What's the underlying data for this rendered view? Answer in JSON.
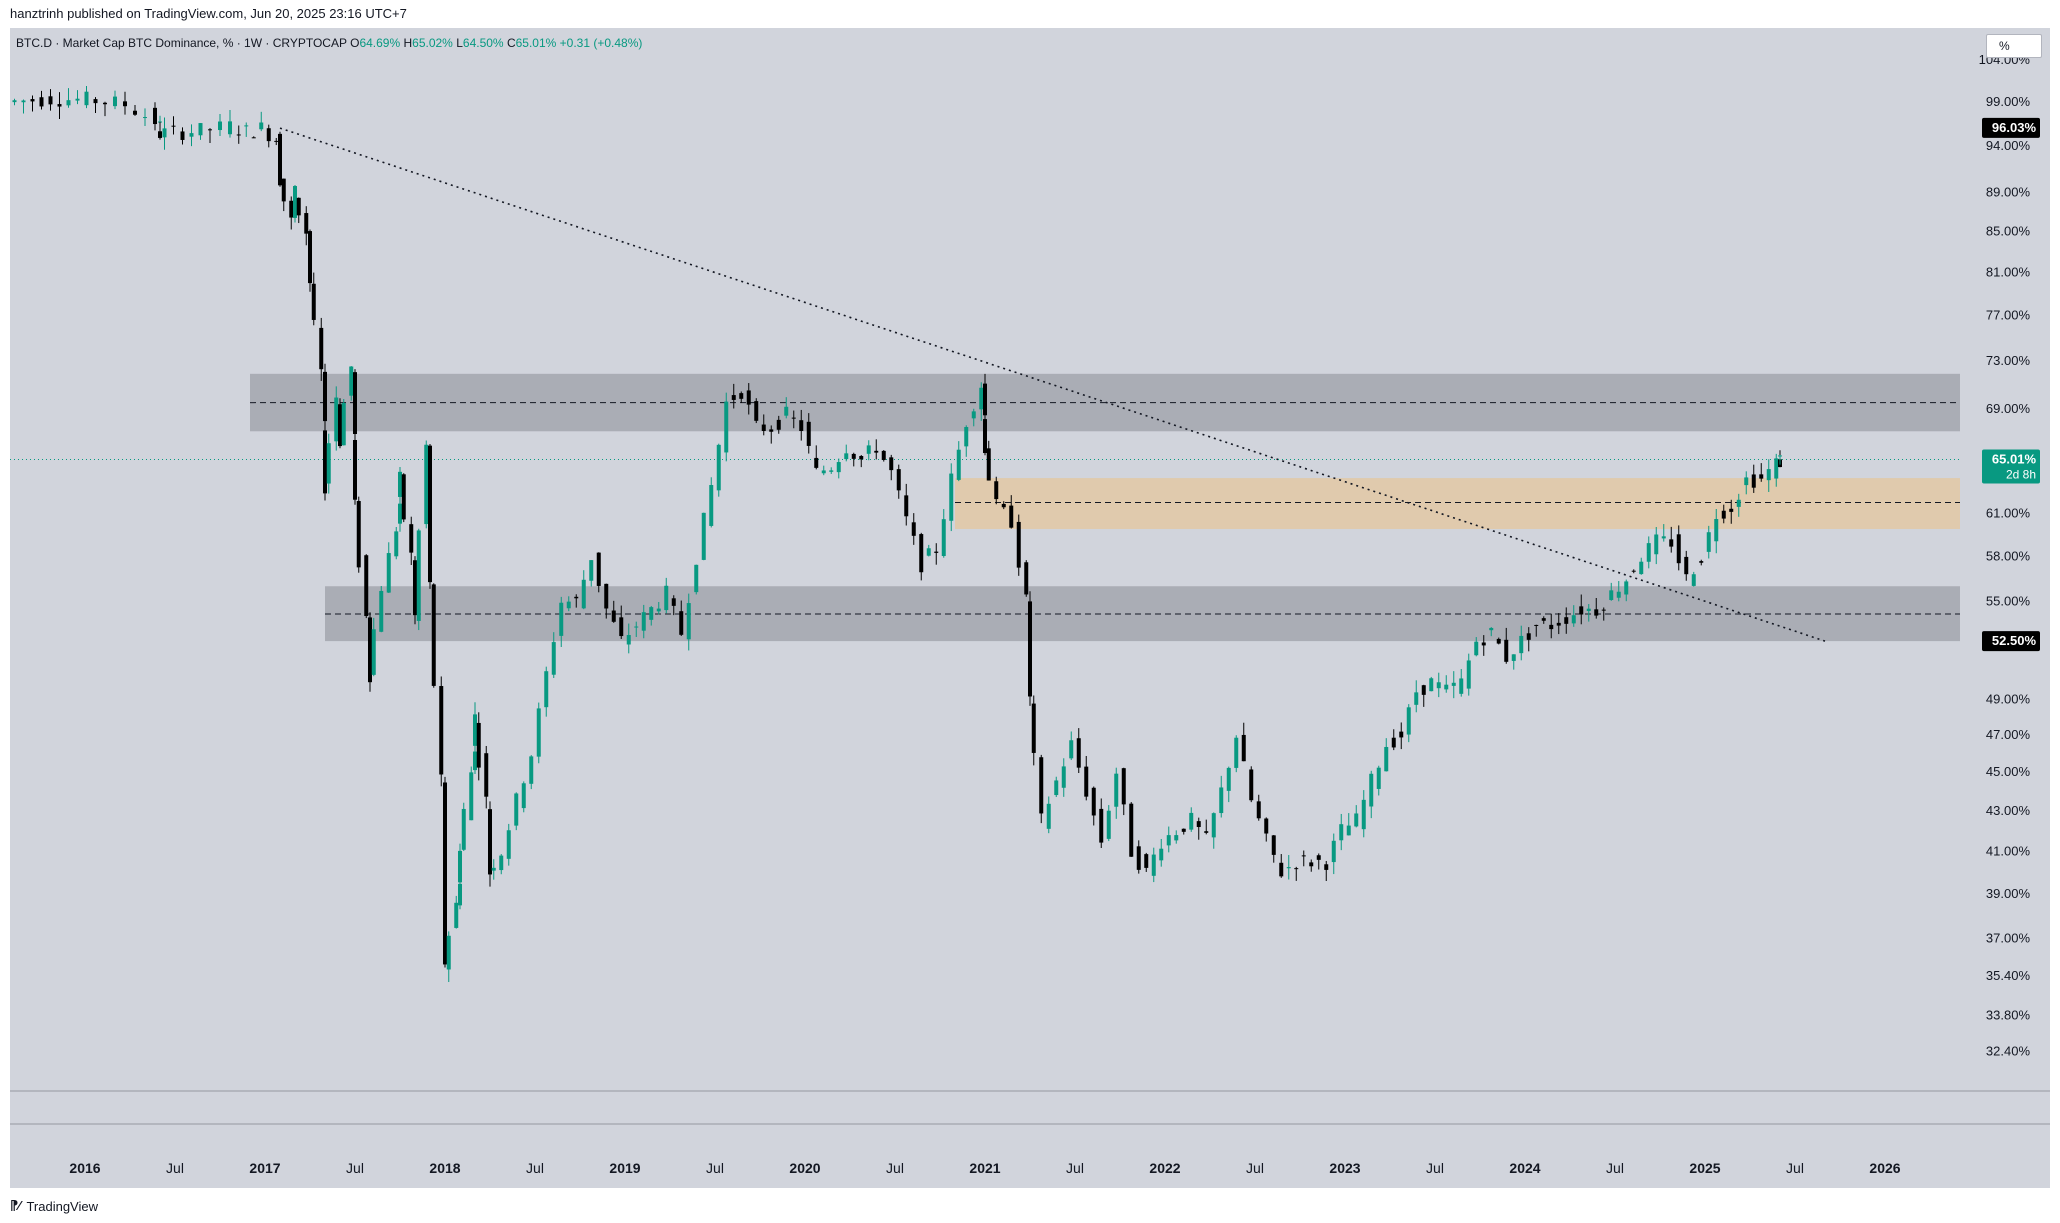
{
  "header": {
    "published_by": "hanztrinh published on TradingView.com, Jun 20, 2025 23:16 UTC+7"
  },
  "legend": {
    "symbol": "BTC.D · Market Cap BTC Dominance, % · 1W · CRYPTOCAP",
    "o_label": "O",
    "o_value": "64.69%",
    "h_label": "H",
    "h_value": "65.02%",
    "l_label": "L",
    "l_value": "64.50%",
    "c_label": "C",
    "c_value": "65.01%",
    "change": "+0.31 (+0.48%)"
  },
  "scale_button": {
    "label": "%"
  },
  "footer": {
    "brand": "TradingView"
  },
  "colors": {
    "up": "#089981",
    "down": "#000000",
    "background": "#d1d4dc",
    "gray_zone": "#a3a6ae",
    "orange_zone": "#e0c9aa"
  },
  "icons": {
    "brand_logo": "tradingview-logo-icon"
  },
  "chart_data": {
    "type": "candlestick",
    "title": "BTC.D · Market Cap BTC Dominance, % · 1W · CRYPTOCAP",
    "ohlc_last": {
      "open": 64.69,
      "high": 65.02,
      "low": 64.5,
      "close": 65.01,
      "change": "+0.31 (+0.48%)"
    },
    "y_axis": {
      "scale": "log",
      "ticks": [
        "104.00%",
        "99.00%",
        "94.00%",
        "89.00%",
        "85.00%",
        "81.00%",
        "77.00%",
        "73.00%",
        "69.00%",
        "61.00%",
        "58.00%",
        "55.00%",
        "49.00%",
        "47.00%",
        "45.00%",
        "43.00%",
        "41.00%",
        "39.00%",
        "37.00%",
        "35.40%",
        "33.80%",
        "32.40%"
      ],
      "tick_values": [
        104,
        99,
        94,
        89,
        85,
        81,
        77,
        73,
        69,
        61,
        58,
        55,
        49,
        47,
        45,
        43,
        41,
        39,
        37,
        35.4,
        33.8,
        32.4
      ],
      "range": [
        31.4,
        108
      ]
    },
    "x_axis": {
      "ticks": [
        "2016",
        "Jul",
        "2017",
        "Jul",
        "2018",
        "Jul",
        "2019",
        "Jul",
        "2020",
        "Jul",
        "2021",
        "Jul",
        "2022",
        "Jul",
        "2023",
        "Jul",
        "2024",
        "Jul",
        "2025",
        "Jul",
        "2026"
      ],
      "tick_dates": [
        "2016-01",
        "2016-07",
        "2017-01",
        "2017-07",
        "2018-01",
        "2018-07",
        "2019-01",
        "2019-07",
        "2020-01",
        "2020-07",
        "2021-01",
        "2021-07",
        "2022-01",
        "2022-07",
        "2023-01",
        "2023-07",
        "2024-01",
        "2024-07",
        "2025-01",
        "2025-07",
        "2026-01"
      ],
      "range": [
        "2015-08",
        "2026-06"
      ]
    },
    "price_labels": [
      {
        "text": "96.03%",
        "value": 96.03,
        "style": "black"
      },
      {
        "text": "65.01%",
        "sub": "2d 8h",
        "value": 65.01,
        "style": "green"
      },
      {
        "text": "52.50%",
        "value": 52.5,
        "style": "black"
      }
    ],
    "zones": [
      {
        "type": "gray",
        "from": "2016-12",
        "to": "2026-06",
        "low": 67.2,
        "high": 71.9,
        "midline": 69.5
      },
      {
        "type": "orange",
        "from": "2020-11",
        "to": "2026-06",
        "low": 59.9,
        "high": 63.6,
        "midline": 61.8
      },
      {
        "type": "gray",
        "from": "2017-05",
        "to": "2026-06",
        "low": 52.5,
        "high": 56.0,
        "midline": 54.2
      }
    ],
    "trendline": {
      "from_date": "2017-02",
      "from_value": 96.0,
      "through_date": "2021-01",
      "through_value": 73.5,
      "to_date": "2025-09",
      "to_value": 52.5,
      "style": "dotted"
    },
    "points": [
      [
        "2015-08",
        99.0
      ],
      [
        "2015-11",
        99.4
      ],
      [
        "2016-02",
        99.2
      ],
      [
        "2016-04",
        98.7
      ],
      [
        "2016-06",
        96.8
      ],
      [
        "2016-06",
        95.4
      ],
      [
        "2016-09",
        95.7
      ],
      [
        "2016-11",
        96.2
      ],
      [
        "2016-12",
        95.6
      ],
      [
        "2017-01",
        96.0
      ],
      [
        "2017-02",
        94.8
      ],
      [
        "2017-02",
        90.5
      ],
      [
        "2017-03",
        86.0
      ],
      [
        "2017-03",
        89.0
      ],
      [
        "2017-04",
        85.0
      ],
      [
        "2017-04",
        80.0
      ],
      [
        "2017-05",
        72.0
      ],
      [
        "2017-05",
        63.0
      ],
      [
        "2017-06",
        70.0
      ],
      [
        "2017-06",
        66.5
      ],
      [
        "2017-07",
        72.5
      ],
      [
        "2017-07",
        61.5
      ],
      [
        "2017-08",
        54.0
      ],
      [
        "2017-08",
        50.5
      ],
      [
        "2017-09",
        56.0
      ],
      [
        "2017-10",
        60.0
      ],
      [
        "2017-10",
        63.5
      ],
      [
        "2017-11",
        58.0
      ],
      [
        "2017-11",
        54.0
      ],
      [
        "2017-12",
        66.0
      ],
      [
        "2017-12",
        56.0
      ],
      [
        "2018-01",
        44.5
      ],
      [
        "2018-01",
        36.0
      ],
      [
        "2018-02",
        38.5
      ],
      [
        "2018-02",
        41.0
      ],
      [
        "2018-03",
        45.0
      ],
      [
        "2018-03",
        48.0
      ],
      [
        "2018-04",
        43.5
      ],
      [
        "2018-04",
        40.0
      ],
      [
        "2018-05",
        41.0
      ],
      [
        "2018-06",
        43.5
      ],
      [
        "2018-07",
        46.0
      ],
      [
        "2018-08",
        50.5
      ],
      [
        "2018-09",
        55.0
      ],
      [
        "2018-10",
        55.0
      ],
      [
        "2018-11",
        58.0
      ],
      [
        "2018-12",
        54.5
      ],
      [
        "2019-01",
        52.5
      ],
      [
        "2019-02",
        53.5
      ],
      [
        "2019-03",
        54.5
      ],
      [
        "2019-04",
        55.5
      ],
      [
        "2019-05",
        53.0
      ],
      [
        "2019-06",
        58.0
      ],
      [
        "2019-07",
        63.0
      ],
      [
        "2019-08",
        69.5
      ],
      [
        "2019-09",
        70.5
      ],
      [
        "2019-10",
        67.5
      ],
      [
        "2019-11",
        67.5
      ],
      [
        "2019-12",
        68.5
      ],
      [
        "2020-01",
        67.5
      ],
      [
        "2020-02",
        64.0
      ],
      [
        "2020-03",
        64.5
      ],
      [
        "2020-04",
        66.0
      ],
      [
        "2020-05",
        65.0
      ],
      [
        "2020-06",
        66.0
      ],
      [
        "2020-07",
        64.0
      ],
      [
        "2020-08",
        60.5
      ],
      [
        "2020-09",
        57.5
      ],
      [
        "2020-10",
        58.5
      ],
      [
        "2020-11",
        63.5
      ],
      [
        "2020-12",
        68.0
      ],
      [
        "2021-01",
        71.0
      ],
      [
        "2021-01",
        66.0
      ],
      [
        "2021-02",
        61.5
      ],
      [
        "2021-03",
        60.5
      ],
      [
        "2021-04",
        55.0
      ],
      [
        "2021-04",
        49.0
      ],
      [
        "2021-05",
        42.5
      ],
      [
        "2021-06",
        44.5
      ],
      [
        "2021-07",
        46.5
      ],
      [
        "2021-08",
        44.0
      ],
      [
        "2021-09",
        41.5
      ],
      [
        "2021-10",
        45.0
      ],
      [
        "2021-11",
        41.0
      ],
      [
        "2021-12",
        40.0
      ],
      [
        "2022-01",
        41.5
      ],
      [
        "2022-02",
        42.0
      ],
      [
        "2022-03",
        42.5
      ],
      [
        "2022-04",
        41.5
      ],
      [
        "2022-05",
        44.0
      ],
      [
        "2022-06",
        47.0
      ],
      [
        "2022-07",
        43.5
      ],
      [
        "2022-08",
        41.5
      ],
      [
        "2022-09",
        40.0
      ],
      [
        "2022-10",
        40.5
      ],
      [
        "2022-11",
        40.5
      ],
      [
        "2022-12",
        40.5
      ],
      [
        "2023-01",
        42.0
      ],
      [
        "2023-02",
        42.5
      ],
      [
        "2023-03",
        44.5
      ],
      [
        "2023-04",
        46.5
      ],
      [
        "2023-05",
        47.0
      ],
      [
        "2023-06",
        49.5
      ],
      [
        "2023-07",
        50.0
      ],
      [
        "2023-08",
        49.5
      ],
      [
        "2023-09",
        50.0
      ],
      [
        "2023-10",
        52.5
      ],
      [
        "2023-11",
        53.0
      ],
      [
        "2023-12",
        51.5
      ],
      [
        "2024-01",
        52.5
      ],
      [
        "2024-02",
        53.5
      ],
      [
        "2024-03",
        53.5
      ],
      [
        "2024-04",
        54.0
      ],
      [
        "2024-05",
        54.5
      ],
      [
        "2024-06",
        54.5
      ],
      [
        "2024-07",
        55.5
      ],
      [
        "2024-08",
        56.5
      ],
      [
        "2024-09",
        58.0
      ],
      [
        "2024-10",
        59.0
      ],
      [
        "2024-11",
        59.0
      ],
      [
        "2024-12",
        56.5
      ],
      [
        "2025-01",
        58.0
      ],
      [
        "2025-02",
        61.0
      ],
      [
        "2025-03",
        61.5
      ],
      [
        "2025-04",
        63.5
      ],
      [
        "2025-05",
        63.5
      ],
      [
        "2025-06",
        64.7
      ],
      [
        "2025-06",
        65.01
      ]
    ]
  }
}
